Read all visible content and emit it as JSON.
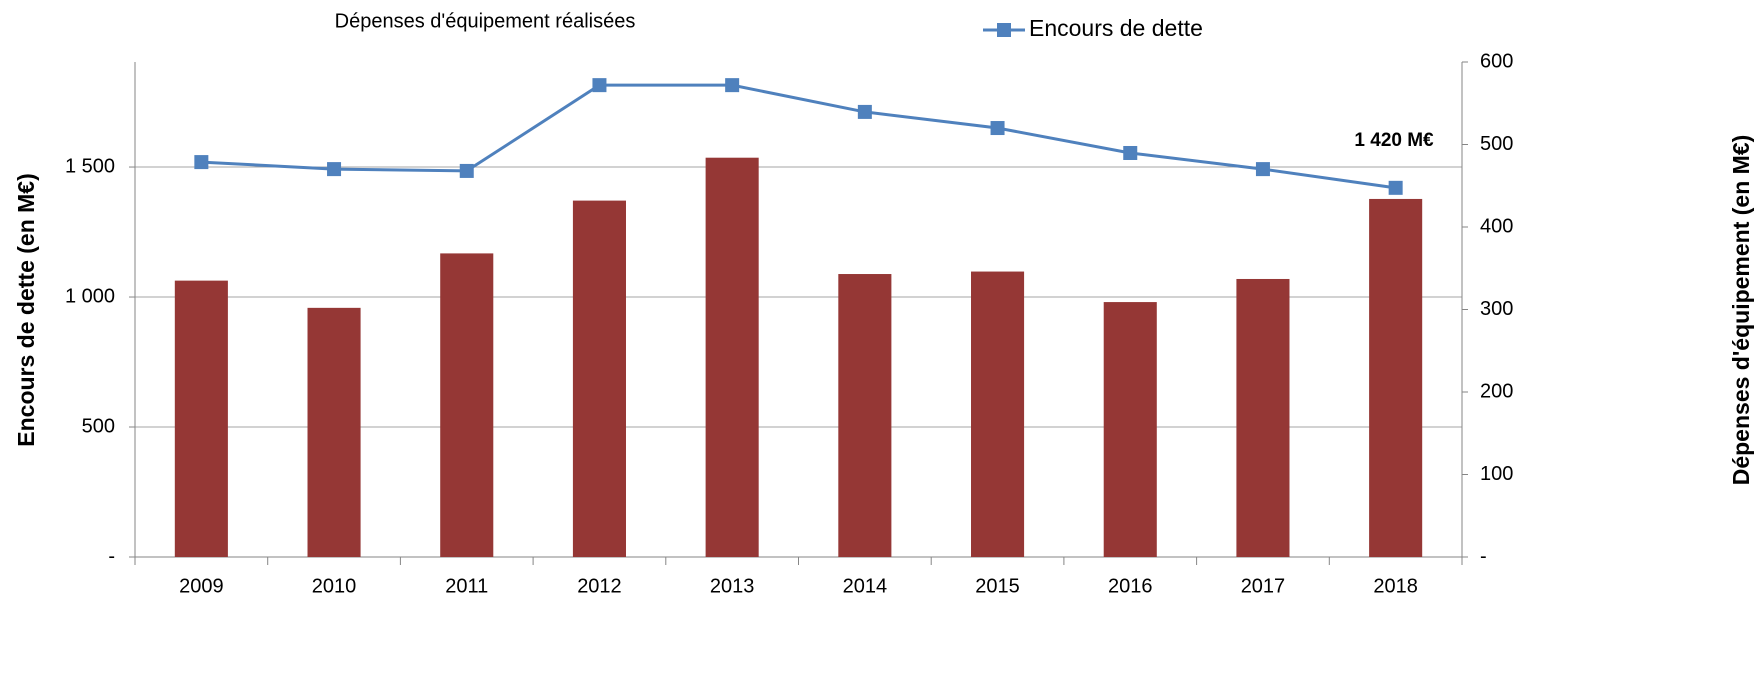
{
  "chart_data": {
    "type": "bar_line",
    "y_label": "Encours de dette (en M€)",
    "y2_label": "Dépenses d'équipement (en M€)",
    "annotation": "1 420 M€",
    "categories": [
      "2009",
      "2010",
      "2011",
      "2012",
      "2013",
      "2014",
      "2015",
      "2016",
      "2017",
      "2018"
    ],
    "series": [
      {
        "name": "Dépenses d'équipement réalisées",
        "type": "bar",
        "axis": "y2",
        "color": "#953735",
        "values": [
          335,
          302,
          368,
          432,
          484,
          343,
          346,
          309,
          337,
          434
        ]
      },
      {
        "name": "Encours de dette",
        "type": "line",
        "color": "#4f81bd",
        "values": [
          1519,
          1492,
          1485,
          1815,
          1815,
          1712,
          1650,
          1554,
          1492,
          1420
        ]
      }
    ],
    "ylim": [
      0,
      1904
    ],
    "yticks": [
      {
        "value": 0,
        "label": "-"
      },
      500,
      {
        "value": 1000,
        "label": "1 000"
      },
      {
        "value": 1500,
        "label": "1 500"
      }
    ],
    "y2lim": [
      0,
      600
    ],
    "y2ticks": [
      {
        "value": 0,
        "label": "-"
      },
      100,
      200,
      300,
      400,
      500,
      600
    ],
    "grid": true
  }
}
